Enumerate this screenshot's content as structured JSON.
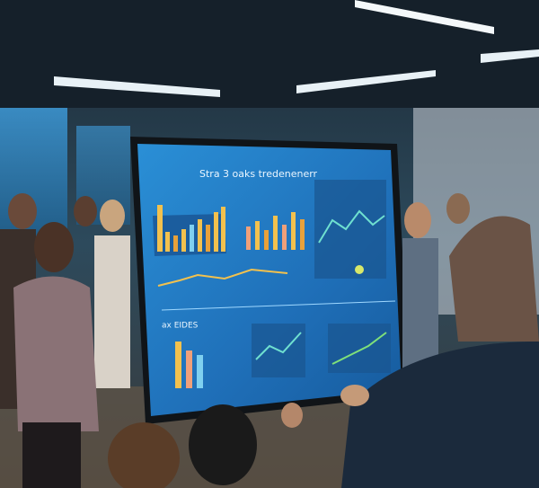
{
  "screen": {
    "title": "Stra 3 oaks tredenenerr",
    "section_label": "ax EIDES"
  }
}
